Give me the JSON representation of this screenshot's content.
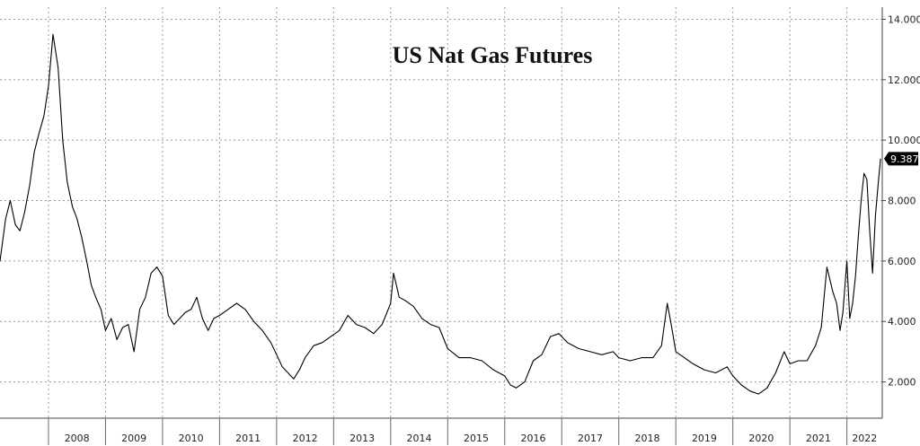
{
  "chart_data": {
    "type": "line",
    "title": "US Nat Gas Futures",
    "xlabel": "",
    "ylabel": "",
    "x_ticks": [
      "2008",
      "2009",
      "2010",
      "2011",
      "2012",
      "2013",
      "2014",
      "2015",
      "2016",
      "2017",
      "2018",
      "2019",
      "2020",
      "2021",
      "2022"
    ],
    "y_ticks": [
      "2.000",
      "4.000",
      "6.000",
      "8.000",
      "10.000",
      "12.000",
      "14.000"
    ],
    "y_tick_values": [
      2,
      4,
      6,
      8,
      10,
      12,
      14
    ],
    "ylim": [
      0.8,
      14.4
    ],
    "xlim": [
      2007.15,
      2022.62
    ],
    "grid": true,
    "y_axis_side": "right",
    "last_value_label": "9.387",
    "colors": {
      "line": "#000000",
      "grid": "#9a9a9a",
      "label_bg": "#000000"
    },
    "series": [
      {
        "x": [
          2007.15,
          2007.25,
          2007.33,
          2007.42,
          2007.5,
          2007.58,
          2007.67,
          2007.75,
          2007.83,
          2007.92,
          2008.0,
          2008.08,
          2008.17,
          2008.25,
          2008.33,
          2008.42,
          2008.5,
          2008.58,
          2008.67,
          2008.75,
          2008.83,
          2008.92,
          2009.0,
          2009.1,
          2009.2,
          2009.3,
          2009.4,
          2009.5,
          2009.6,
          2009.7,
          2009.8,
          2009.9,
          2010.0,
          2010.1,
          2010.2,
          2010.3,
          2010.4,
          2010.5,
          2010.6,
          2010.7,
          2010.8,
          2010.9,
          2011.0,
          2011.15,
          2011.3,
          2011.45,
          2011.6,
          2011.75,
          2011.9,
          2012.0,
          2012.1,
          2012.2,
          2012.3,
          2012.4,
          2012.5,
          2012.65,
          2012.8,
          2012.95,
          2013.1,
          2013.25,
          2013.4,
          2013.55,
          2013.7,
          2013.85,
          2014.0,
          2014.05,
          2014.1,
          2014.15,
          2014.25,
          2014.4,
          2014.55,
          2014.7,
          2014.85,
          2015.0,
          2015.2,
          2015.4,
          2015.6,
          2015.8,
          2016.0,
          2016.1,
          2016.2,
          2016.35,
          2016.5,
          2016.65,
          2016.8,
          2016.95,
          2017.1,
          2017.3,
          2017.5,
          2017.7,
          2017.9,
          2018.0,
          2018.2,
          2018.4,
          2018.6,
          2018.75,
          2018.85,
          2018.92,
          2019.0,
          2019.15,
          2019.3,
          2019.5,
          2019.7,
          2019.9,
          2020.0,
          2020.15,
          2020.3,
          2020.45,
          2020.6,
          2020.75,
          2020.9,
          2021.0,
          2021.15,
          2021.3,
          2021.45,
          2021.55,
          2021.65,
          2021.75,
          2021.82,
          2021.88,
          2021.93,
          2022.0,
          2022.05,
          2022.1,
          2022.15,
          2022.2,
          2022.25,
          2022.3,
          2022.35,
          2022.4,
          2022.45,
          2022.5,
          2022.55,
          2022.59
        ],
        "y": [
          6.0,
          7.4,
          8.0,
          7.2,
          7.0,
          7.6,
          8.5,
          9.6,
          10.2,
          10.8,
          11.8,
          13.5,
          12.4,
          10.0,
          8.6,
          7.8,
          7.4,
          6.8,
          6.0,
          5.2,
          4.8,
          4.4,
          3.7,
          4.1,
          3.4,
          3.8,
          3.9,
          3.0,
          4.4,
          4.8,
          5.6,
          5.8,
          5.5,
          4.2,
          3.9,
          4.1,
          4.3,
          4.4,
          4.8,
          4.1,
          3.7,
          4.1,
          4.2,
          4.4,
          4.6,
          4.4,
          4.0,
          3.7,
          3.3,
          2.9,
          2.5,
          2.3,
          2.1,
          2.4,
          2.8,
          3.2,
          3.3,
          3.5,
          3.7,
          4.2,
          3.9,
          3.8,
          3.6,
          3.9,
          4.6,
          5.6,
          5.2,
          4.8,
          4.7,
          4.5,
          4.1,
          3.9,
          3.8,
          3.1,
          2.8,
          2.8,
          2.7,
          2.4,
          2.2,
          1.9,
          1.8,
          2.0,
          2.7,
          2.9,
          3.5,
          3.6,
          3.3,
          3.1,
          3.0,
          2.9,
          3.0,
          2.8,
          2.7,
          2.8,
          2.8,
          3.2,
          4.6,
          3.9,
          3.0,
          2.8,
          2.6,
          2.4,
          2.3,
          2.5,
          2.2,
          1.9,
          1.7,
          1.6,
          1.8,
          2.3,
          3.0,
          2.6,
          2.7,
          2.7,
          3.2,
          3.8,
          5.8,
          5.0,
          4.6,
          3.7,
          4.3,
          6.0,
          4.1,
          4.6,
          5.5,
          6.8,
          8.0,
          8.9,
          8.7,
          7.0,
          5.6,
          7.5,
          8.6,
          9.387
        ]
      }
    ]
  }
}
